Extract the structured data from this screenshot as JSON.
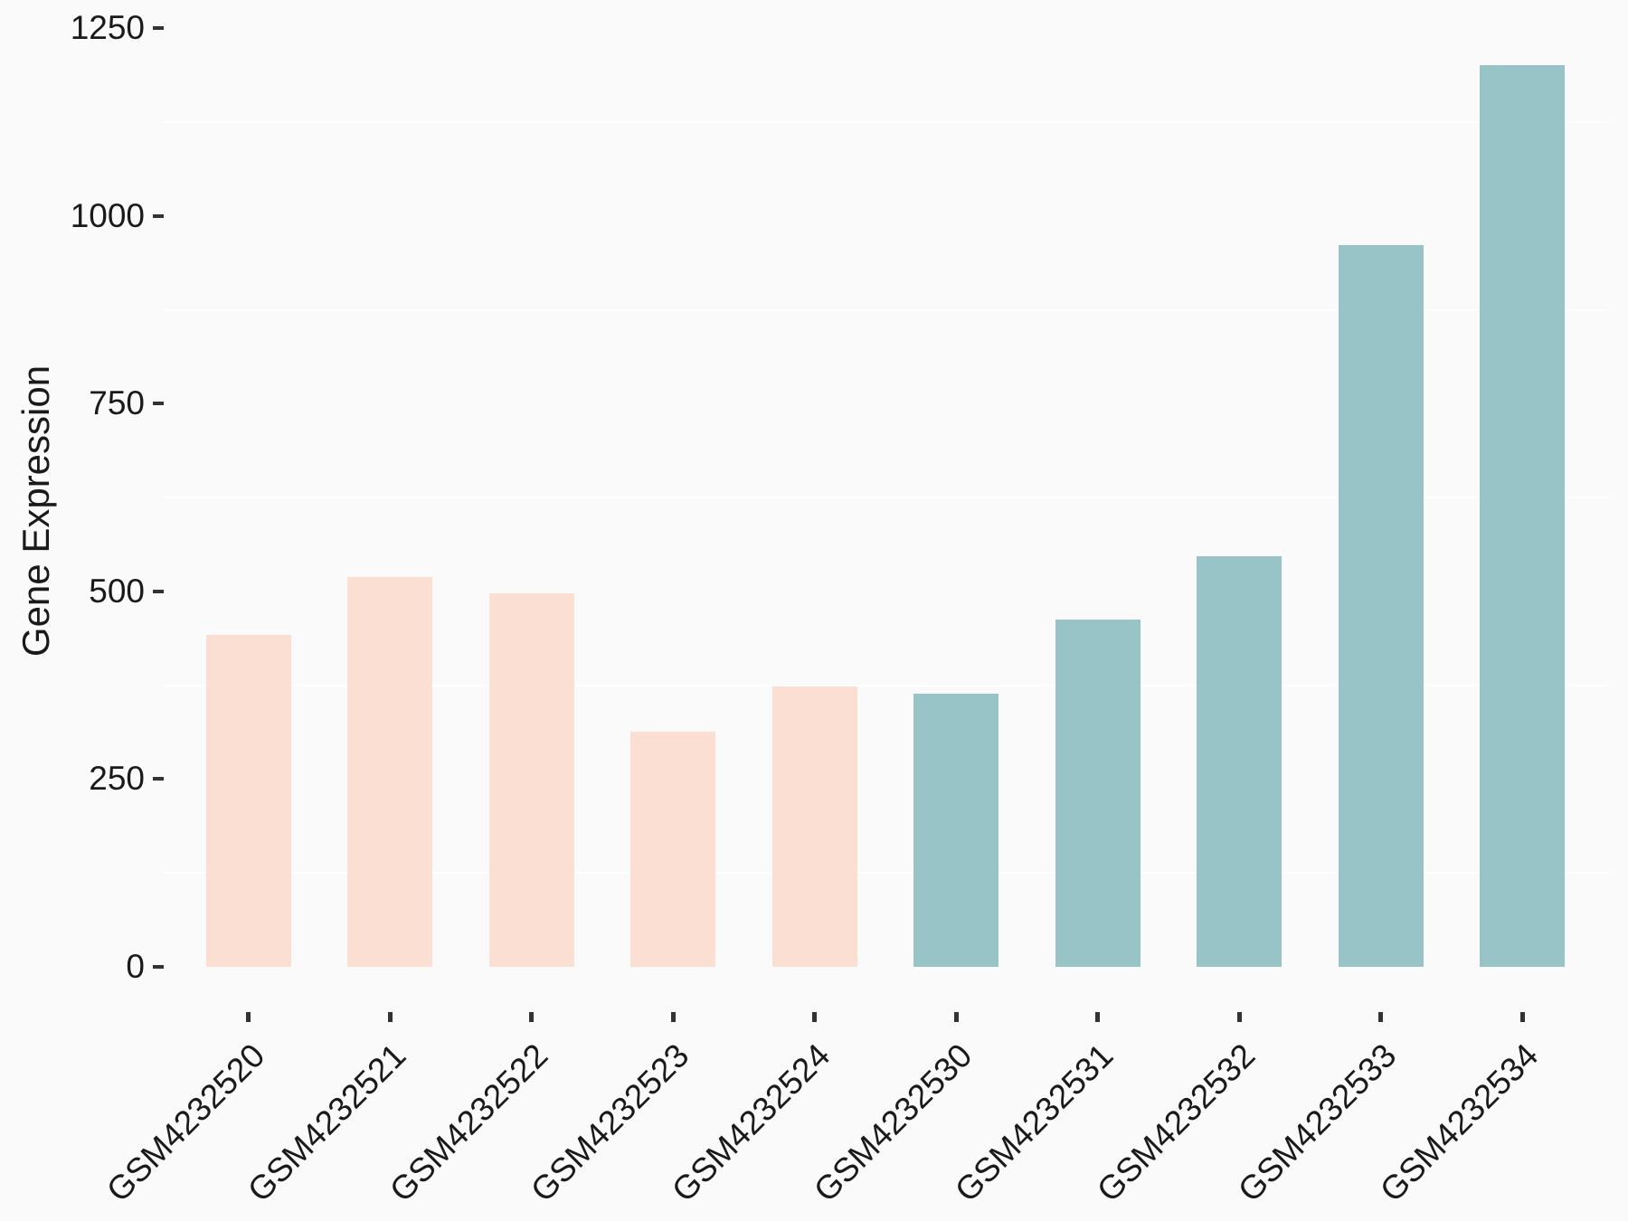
{
  "page": {
    "background_color": "#FAFAFA"
  },
  "style": {
    "panel_background": "#FAFAFA",
    "gridline_color": "#FFFFFF",
    "axis_tick_color": "#333333",
    "axis_text_color": "#1A1A1A"
  },
  "chart_data": {
    "type": "bar",
    "title": "",
    "xlabel": "",
    "ylabel": "Gene Expression",
    "categories": [
      "GSM4232520",
      "GSM4232521",
      "GSM4232522",
      "GSM4232523",
      "GSM4232524",
      "GSM4232530",
      "GSM4232531",
      "GSM4232532",
      "GSM4232533",
      "GSM4232534"
    ],
    "values": [
      442,
      519,
      497,
      313,
      373,
      364,
      463,
      547,
      961,
      1201
    ],
    "groups": [
      "pink",
      "pink",
      "pink",
      "pink",
      "pink",
      "teal",
      "teal",
      "teal",
      "teal",
      "teal"
    ],
    "group_colors": {
      "pink": "#FCDFD3",
      "teal": "#99C4C7"
    },
    "ylim": [
      0,
      1250
    ],
    "yticks": [
      0,
      250,
      500,
      750,
      1000,
      1250
    ],
    "minor_gridlines": [
      125,
      375,
      625,
      875,
      1125
    ],
    "grid": "minor horizontal only, white on light gray",
    "legend_position": "none",
    "x_tick_rotation_deg": 45,
    "bar_width_fraction": 0.6
  }
}
